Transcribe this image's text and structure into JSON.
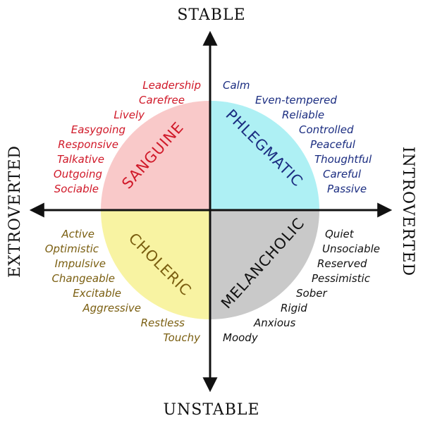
{
  "axes": {
    "top": "STABLE",
    "bottom": "UNSTABLE",
    "left": "EXTROVERTED",
    "right": "INTROVERTED"
  },
  "quadrants": {
    "sanguine": {
      "label": "SANGUINE",
      "color": "#f9c9c9",
      "text_color": "#d01828",
      "traits": [
        "Leadership",
        "Carefree",
        "Lively",
        "Easygoing",
        "Responsive",
        "Talkative",
        "Outgoing",
        "Sociable"
      ]
    },
    "phlegmatic": {
      "label": "PHLEGMATIC",
      "color": "#aef0f4",
      "text_color": "#1a2c80",
      "traits": [
        "Calm",
        "Even-tempered",
        "Reliable",
        "Controlled",
        "Peaceful",
        "Thoughtful",
        "Careful",
        "Passive"
      ]
    },
    "choleric": {
      "label": "CHOLERIC",
      "color": "#f8f3a2",
      "text_color": "#7a5e10",
      "traits": [
        "Active",
        "Optimistic",
        "Impulsive",
        "Changeable",
        "Excitable",
        "Aggressive",
        "Restless",
        "Touchy"
      ]
    },
    "melancholic": {
      "label": "MELANCHOLIC",
      "color": "#c9c9c9",
      "text_color": "#111111",
      "traits": [
        "Quiet",
        "Unsociable",
        "Reserved",
        "Pessimistic",
        "Sober",
        "Rigid",
        "Anxious",
        "Moody"
      ]
    }
  }
}
